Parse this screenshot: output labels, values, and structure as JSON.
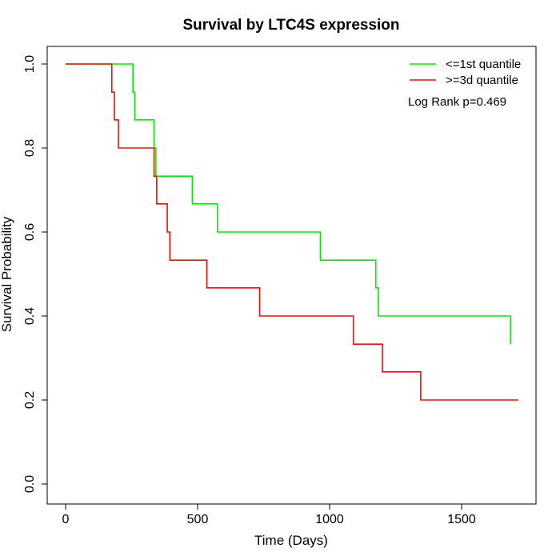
{
  "chart_data": {
    "type": "line",
    "title": "Survival by LTC4S expression",
    "xlabel": "Time (Days)",
    "ylabel": "Survival Probability",
    "xlim": [
      0,
      1750
    ],
    "ylim": [
      0,
      1.0
    ],
    "x_ticks": [
      0,
      500,
      1000,
      1500
    ],
    "x_tick_labels": [
      "0",
      "500",
      "1000",
      "1500"
    ],
    "y_ticks": [
      0,
      0.2,
      0.4,
      0.6,
      0.8,
      1.0
    ],
    "y_tick_labels": [
      "0.0",
      "0.2",
      "0.4",
      "0.6",
      "0.8",
      "1.0"
    ],
    "legend_position": "top-right",
    "annotation": "Log Rank p=0.469",
    "series": [
      {
        "name": "<=1st quantile",
        "color": "#00ee00",
        "x": [
          0,
          255,
          262,
          335,
          342,
          480,
          575,
          965,
          1175,
          1185,
          1685
        ],
        "y": [
          1.0,
          0.933,
          0.867,
          0.8,
          0.733,
          0.667,
          0.6,
          0.533,
          0.467,
          0.4,
          0.333
        ]
      },
      {
        "name": ">=3d quantile",
        "color": "#ee1100",
        "x": [
          0,
          175,
          185,
          200,
          335,
          345,
          385,
          395,
          535,
          735,
          1090,
          1200,
          1345,
          1715
        ],
        "y": [
          1.0,
          0.933,
          0.867,
          0.8,
          0.733,
          0.667,
          0.6,
          0.533,
          0.467,
          0.4,
          0.333,
          0.267,
          0.2,
          0.2
        ]
      }
    ]
  }
}
